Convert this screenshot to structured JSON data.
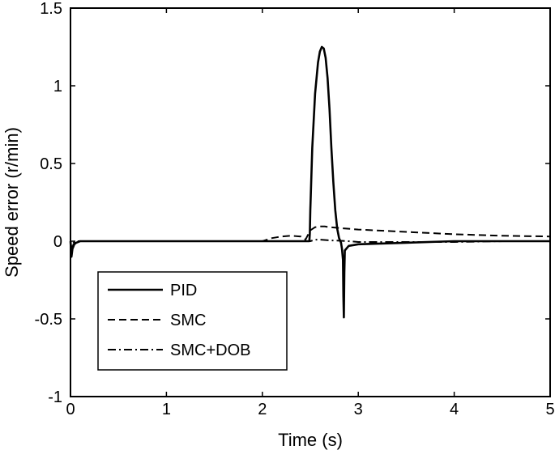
{
  "chart_data": {
    "type": "line",
    "xlabel": "Time (s)",
    "ylabel": "Speed error (r/min)",
    "xlim": [
      0,
      5
    ],
    "ylim": [
      -1,
      1.5
    ],
    "x_ticks": [
      0,
      1,
      2,
      3,
      4,
      5
    ],
    "x_tick_labels": [
      "0",
      "1",
      "2",
      "3",
      "4",
      "5"
    ],
    "y_ticks": [
      -1,
      -0.5,
      0,
      0.5,
      1,
      1.5
    ],
    "y_tick_labels": [
      "-1",
      "-0.5",
      "0",
      "0.5",
      "1",
      "1.5"
    ],
    "grid": false,
    "legend_position": "lower-left",
    "series": [
      {
        "name": "PID",
        "style": "solid",
        "color": "#000000",
        "x": [
          0,
          0.01,
          0.02,
          0.04,
          0.06,
          0.1,
          0.2,
          1.0,
          2.0,
          2.49,
          2.495,
          2.5,
          2.52,
          2.55,
          2.58,
          2.6,
          2.62,
          2.64,
          2.66,
          2.68,
          2.7,
          2.72,
          2.74,
          2.76,
          2.78,
          2.8,
          2.82,
          2.83,
          2.84,
          2.845,
          2.85,
          2.855,
          2.86,
          2.9,
          3.0,
          3.5,
          4.0,
          4.5,
          5.0
        ],
        "y": [
          0,
          -0.1,
          -0.05,
          -0.02,
          -0.01,
          0,
          0,
          0,
          0,
          0,
          0.05,
          0.2,
          0.6,
          0.95,
          1.15,
          1.22,
          1.25,
          1.24,
          1.18,
          1.05,
          0.85,
          0.6,
          0.38,
          0.2,
          0.08,
          0.02,
          -0.01,
          -0.05,
          -0.12,
          -0.35,
          -0.49,
          -0.2,
          -0.06,
          -0.03,
          -0.02,
          -0.01,
          0,
          0,
          0
        ]
      },
      {
        "name": "SMC",
        "style": "dashed",
        "color": "#000000",
        "x": [
          0,
          0.01,
          0.03,
          0.05,
          0.1,
          0.5,
          1.0,
          1.5,
          2.0,
          2.05,
          2.1,
          2.2,
          2.3,
          2.4,
          2.45,
          2.5,
          2.55,
          2.6,
          2.65,
          2.7,
          2.8,
          3.0,
          3.5,
          4.0,
          4.5,
          5.0
        ],
        "y": [
          0,
          -0.06,
          -0.02,
          -0.005,
          0,
          0,
          0,
          0,
          0,
          0.01,
          0.02,
          0.03,
          0.035,
          0.03,
          0.01,
          0.07,
          0.09,
          0.095,
          0.095,
          0.09,
          0.085,
          0.075,
          0.06,
          0.045,
          0.035,
          0.03
        ]
      },
      {
        "name": "SMC+DOB",
        "style": "dash-dot",
        "color": "#000000",
        "x": [
          0,
          0.01,
          0.03,
          0.05,
          0.1,
          1.0,
          2.0,
          2.5,
          2.55,
          2.6,
          2.7,
          2.8,
          2.9,
          3.0,
          3.5,
          4.0,
          4.5,
          5.0
        ],
        "y": [
          0,
          -0.04,
          -0.01,
          0,
          0,
          0,
          0,
          0,
          0.01,
          0.01,
          0.005,
          0.003,
          0,
          -0.005,
          -0.005,
          -0.005,
          0,
          0
        ]
      }
    ]
  }
}
